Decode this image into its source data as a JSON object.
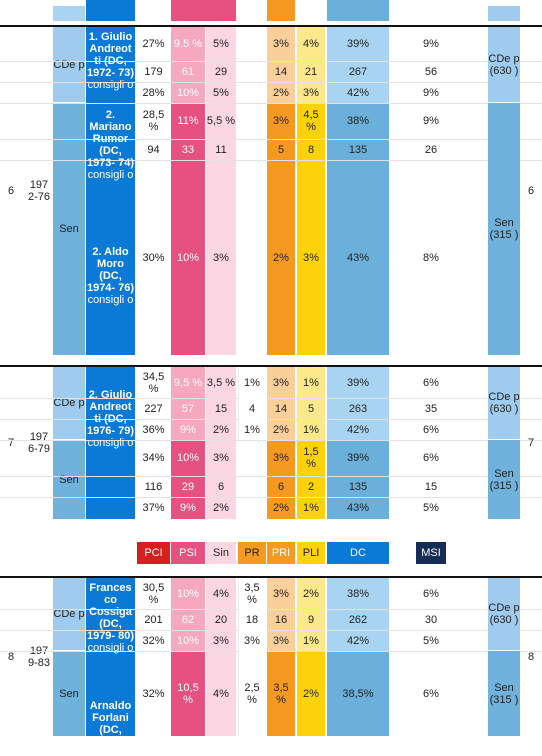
{
  "colors": {
    "chamber_light": "#9fcbef",
    "senate_mid": "#6fb3dc",
    "premier_blue": "#0a7ad6",
    "psi_dark": "#e65280",
    "psi_light": "#f5a8be",
    "sin_light": "#fcd7e3",
    "pri_dark": "#f59a1e",
    "pri_light": "#fbcf9a",
    "pli_dark": "#fcd20a",
    "pli_light": "#fde98a",
    "dc_dark": "#6ab0da",
    "dc_light": "#a9d4f1",
    "pci_red": "#d81e1e",
    "pr_orange": "#f59a1e",
    "msi_navy": "#152c54"
  },
  "legend": [
    "PCI",
    "PSI",
    "Sin",
    "PR",
    "PRI",
    "PLI",
    "DC",
    "MSI"
  ],
  "legislatures": [
    {
      "number": "6",
      "years": "197 2-76",
      "chamber_label": "CDe p",
      "senate_label": "Sen",
      "right_chamber": "CDe p (630 )",
      "right_senate": "Sen (315 )",
      "governments": [
        {
          "name": "1. Giulio Andreot ti (DC, 1972- 73)",
          "role": "consigli o"
        },
        {
          "name": "2. Mariano Rumor (DC, 1973- 74)",
          "role": "consigli o"
        },
        {
          "name": "2. Aldo Moro (DC, 1974- 76)",
          "role": "consigli o"
        }
      ],
      "rows": [
        {
          "pci": "27%",
          "psi": "9,5 %",
          "sin": "5%",
          "pr": "",
          "pri": "3%",
          "pli": "4%",
          "dc": "39%",
          "msi": "9%"
        },
        {
          "pci": "179",
          "psi": "61",
          "sin": "29",
          "pr": "",
          "pri": "14",
          "pli": "21",
          "dc": "267",
          "msi": "56"
        },
        {
          "pci": "28%",
          "psi": "10%",
          "sin": "5%",
          "pr": "",
          "pri": "2%",
          "pli": "3%",
          "dc": "42%",
          "msi": "9%"
        },
        {
          "pci": "28,5 %",
          "psi": "11%",
          "sin": "5,5 %",
          "pr": "",
          "pri": "3%",
          "pli": "4,5 %",
          "dc": "38%",
          "msi": "9%"
        },
        {
          "pci": "94",
          "psi": "33",
          "sin": "11",
          "pr": "",
          "pri": "5",
          "pli": "8",
          "dc": "135",
          "msi": "26"
        },
        {
          "pci": "30%",
          "psi": "10%",
          "sin": "3%",
          "pr": "",
          "pri": "2%",
          "pli": "3%",
          "dc": "43%",
          "msi": "8%"
        }
      ]
    },
    {
      "number": "7",
      "years": "197 6-79",
      "chamber_label": "CDe p",
      "senate_label": "Sen",
      "right_chamber": "CDe p (630 )",
      "right_senate": "Sen (315 )",
      "governments": [
        {
          "name": "2. Giulio Andreot ti (DC, 1976- 79)",
          "role": "consigli o"
        }
      ],
      "rows": [
        {
          "pci": "34,5 %",
          "psi": "9,5 %",
          "sin": "3,5 %",
          "pr": "1%",
          "pri": "3%",
          "pli": "1%",
          "dc": "39%",
          "msi": "6%"
        },
        {
          "pci": "227",
          "psi": "57",
          "sin": "15",
          "pr": "4",
          "pri": "14",
          "pli": "5",
          "dc": "263",
          "msi": "35"
        },
        {
          "pci": "36%",
          "psi": "9%",
          "sin": "2%",
          "pr": "1%",
          "pri": "2%",
          "pli": "1%",
          "dc": "42%",
          "msi": "6%"
        },
        {
          "pci": "34%",
          "psi": "10%",
          "sin": "3%",
          "pr": "",
          "pri": "3%",
          "pli": "1,5 %",
          "dc": "39%",
          "msi": "6%"
        },
        {
          "pci": "116",
          "psi": "29",
          "sin": "6",
          "pr": "",
          "pri": "6",
          "pli": "2",
          "dc": "135",
          "msi": "15"
        },
        {
          "pci": "37%",
          "psi": "9%",
          "sin": "2%",
          "pr": "",
          "pri": "2%",
          "pli": "1%",
          "dc": "43%",
          "msi": "5%"
        }
      ]
    },
    {
      "number": "8",
      "years": "197 9-83",
      "chamber_label": "CDe p",
      "senate_label": "Sen",
      "right_chamber": "CDe p (630 )",
      "right_senate": "Sen (315 )",
      "governments": [
        {
          "name": "Frances co Cossiga (DC, 1979- 80)",
          "role": "consigli o"
        },
        {
          "name": "Arnaldo Forlani (DC,",
          "role": ""
        }
      ],
      "rows": [
        {
          "pci": "30,5 %",
          "psi": "10%",
          "sin": "4%",
          "pr": "3,5 %",
          "pri": "3%",
          "pli": "2%",
          "dc": "38%",
          "msi": "6%"
        },
        {
          "pci": "201",
          "psi": "62",
          "sin": "20",
          "pr": "18",
          "pri": "16",
          "pli": "9",
          "dc": "262",
          "msi": "30"
        },
        {
          "pci": "32%",
          "psi": "10%",
          "sin": "3%",
          "pr": "3%",
          "pri": "3%",
          "pli": "1%",
          "dc": "42%",
          "msi": "5%"
        },
        {
          "pci": "32%",
          "psi": "10,5 %",
          "sin": "4%",
          "pr": "2,5 %",
          "pri": "3,5 %",
          "pli": "2%",
          "dc": "38,5%",
          "msi": "6%"
        }
      ]
    }
  ]
}
